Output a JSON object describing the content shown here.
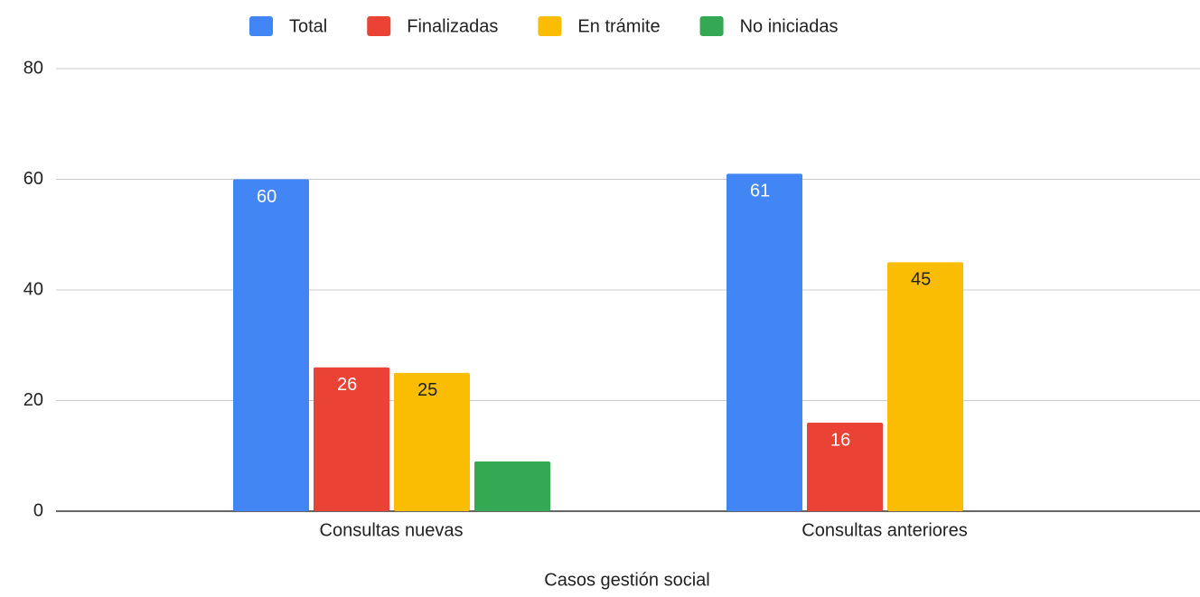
{
  "chart_data": {
    "type": "bar",
    "x_label": "Casos gestión social",
    "categories": [
      "Consultas nuevas",
      "Consultas anteriores"
    ],
    "series": [
      {
        "name": "Total",
        "color": "#4285f4",
        "values": [
          60,
          61
        ],
        "labels": true,
        "label_color": "#ffffff"
      },
      {
        "name": "Finalizadas",
        "color": "#ea4335",
        "values": [
          26,
          16
        ],
        "labels": true,
        "label_color": "#ffffff"
      },
      {
        "name": "En trámite",
        "color": "#fbbc04",
        "values": [
          25,
          45
        ],
        "labels": true,
        "label_color": "#202124"
      },
      {
        "name": "No iniciadas",
        "color": "#34a853",
        "values": [
          9,
          null
        ],
        "labels": false,
        "label_color": "#ffffff"
      }
    ],
    "ylim": [
      0,
      80
    ],
    "yticks": [
      0,
      20,
      40,
      60,
      80
    ],
    "grid": true,
    "legend": "top"
  }
}
